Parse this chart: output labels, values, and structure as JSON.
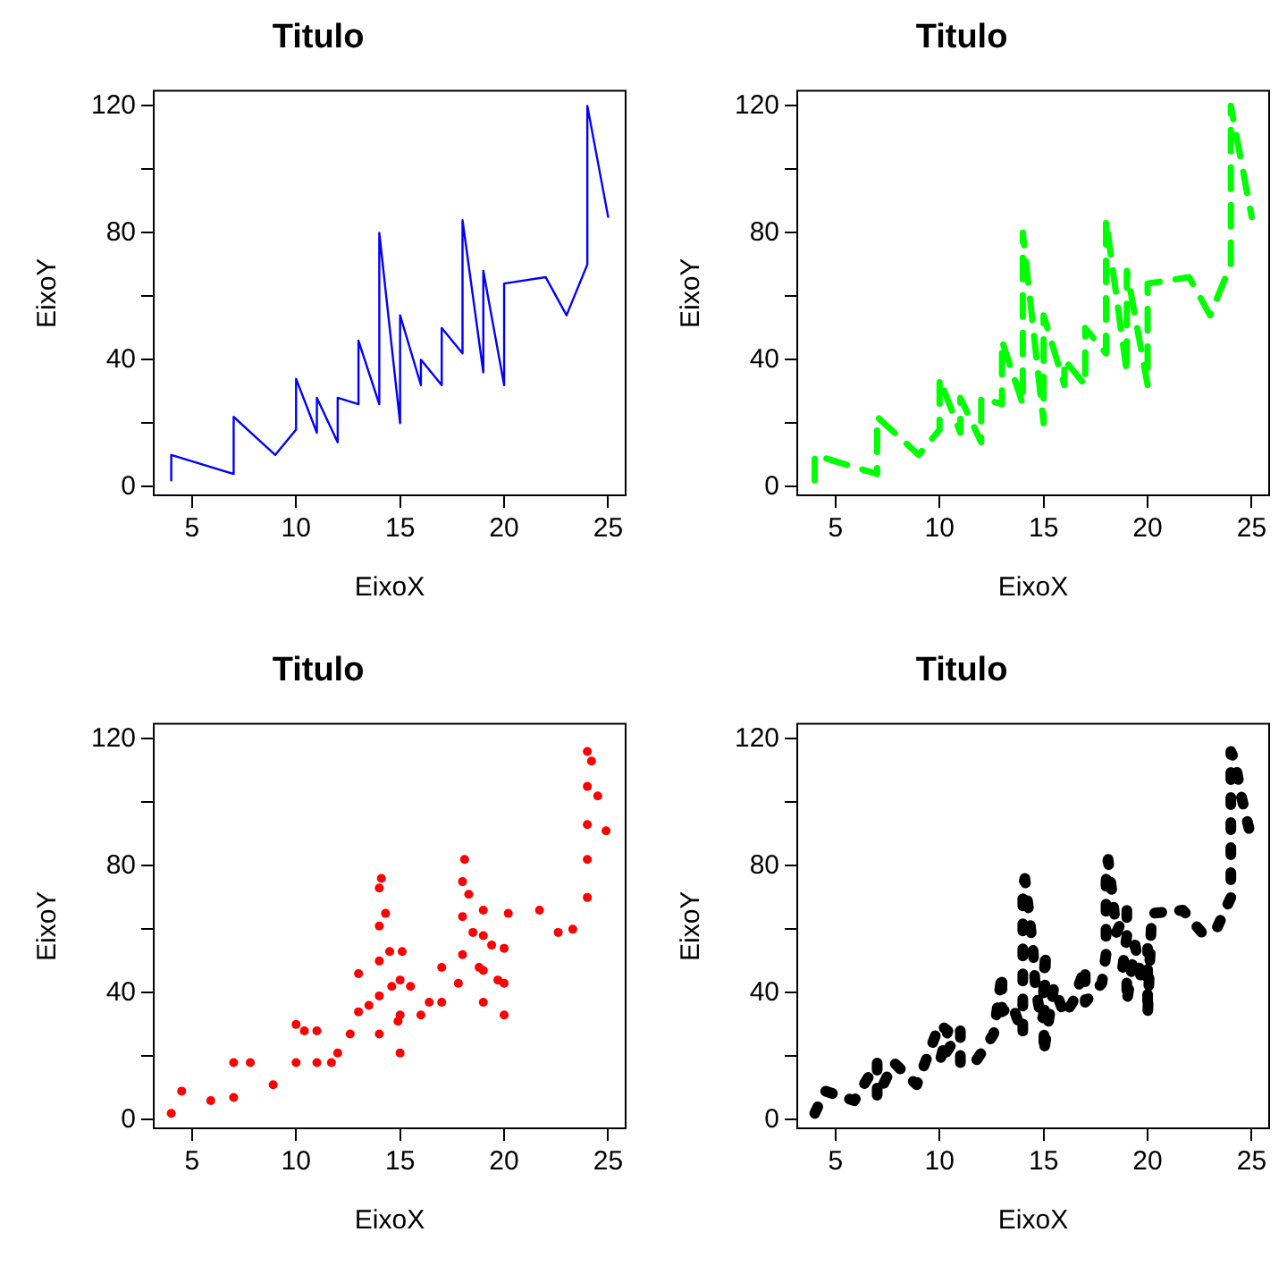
{
  "chart_data": [
    {
      "type": "line",
      "title": "Titulo",
      "xlabel": "EixoX",
      "ylabel": "EixoY",
      "line_style": "solid",
      "marker": "none",
      "xlim": [
        3.16,
        25.84
      ],
      "ylim": [
        -2.72,
        124.72
      ],
      "xticks": [
        5,
        10,
        15,
        20,
        25
      ],
      "yticks": [
        0,
        {
          "value": 20,
          "label": null
        },
        40,
        {
          "value": 60,
          "label": null
        },
        80,
        {
          "value": 100,
          "label": null
        },
        120
      ],
      "x": [
        4,
        4,
        7,
        7,
        8,
        9,
        10,
        10,
        10,
        11,
        11,
        12,
        12,
        12,
        12,
        13,
        13,
        13,
        13,
        14,
        14,
        14,
        14,
        15,
        15,
        15,
        16,
        16,
        17,
        17,
        17,
        18,
        18,
        18,
        18,
        19,
        19,
        19,
        20,
        20,
        20,
        20,
        20,
        22,
        23,
        24,
        24,
        24,
        24,
        25
      ],
      "series": [
        {
          "color": "#0000ff",
          "values": [
            2,
            10,
            4,
            22,
            16,
            10,
            18,
            26,
            34,
            17,
            28,
            14,
            20,
            24,
            28,
            26,
            34,
            34,
            46,
            26,
            36,
            60,
            80,
            20,
            26,
            54,
            32,
            40,
            32,
            40,
            50,
            42,
            56,
            76,
            84,
            36,
            46,
            68,
            32,
            48,
            52,
            56,
            64,
            66,
            54,
            70,
            92,
            93,
            120,
            85
          ]
        }
      ]
    },
    {
      "type": "line",
      "title": "Titulo",
      "xlabel": "EixoX",
      "ylabel": "EixoY",
      "line_style": "dashed",
      "marker": "none",
      "xlim": [
        3.16,
        25.84
      ],
      "ylim": [
        -2.72,
        124.72
      ],
      "xticks": [
        5,
        10,
        15,
        20,
        25
      ],
      "yticks": [
        0,
        {
          "value": 20,
          "label": null
        },
        40,
        {
          "value": 60,
          "label": null
        },
        80,
        {
          "value": 100,
          "label": null
        },
        120
      ],
      "x": [
        4,
        4,
        7,
        7,
        8,
        9,
        10,
        10,
        10,
        11,
        11,
        12,
        12,
        12,
        12,
        13,
        13,
        13,
        13,
        14,
        14,
        14,
        14,
        15,
        15,
        15,
        16,
        16,
        17,
        17,
        17,
        18,
        18,
        18,
        18,
        19,
        19,
        19,
        20,
        20,
        20,
        20,
        20,
        22,
        23,
        24,
        24,
        24,
        24,
        25
      ],
      "series": [
        {
          "color": "#00ff00",
          "values": [
            2,
            10,
            4,
            22,
            16,
            10,
            18,
            26,
            34,
            17,
            28,
            14,
            20,
            24,
            28,
            26,
            34,
            34,
            46,
            26,
            36,
            60,
            80,
            20,
            26,
            54,
            32,
            40,
            32,
            40,
            50,
            42,
            56,
            76,
            84,
            36,
            46,
            68,
            32,
            48,
            52,
            56,
            64,
            66,
            54,
            70,
            92,
            93,
            120,
            85
          ]
        }
      ]
    },
    {
      "type": "scatter",
      "title": "Titulo",
      "xlabel": "EixoX",
      "ylabel": "EixoY",
      "marker": "circle",
      "xlim": [
        3.16,
        25.84
      ],
      "ylim": [
        -2.72,
        124.72
      ],
      "xticks": [
        5,
        10,
        15,
        20,
        25
      ],
      "yticks": [
        0,
        {
          "value": 20,
          "label": null
        },
        40,
        {
          "value": 60,
          "label": null
        },
        80,
        {
          "value": 100,
          "label": null
        },
        120
      ],
      "x": [
        4,
        4.5,
        5.9,
        7,
        7,
        7.8,
        8.9,
        10,
        10.4,
        10,
        11,
        11,
        11.7,
        12,
        12.6,
        13,
        13,
        13.5,
        14,
        14,
        14,
        14,
        14,
        14.1,
        14.3,
        14.5,
        14.6,
        14.9,
        15,
        15,
        15.1,
        15,
        15.5,
        16,
        16.4,
        17,
        17,
        17.8,
        18,
        18,
        18,
        18.1,
        18.3,
        18.5,
        19,
        19,
        18.8,
        19,
        19,
        19.4,
        19.7,
        20,
        20,
        20,
        20.2,
        21.7,
        22.6,
        23.3,
        24,
        24,
        24,
        24,
        24,
        24.2,
        24.5,
        24.9
      ],
      "series": [
        {
          "color": "#ff0000",
          "values": [
            2,
            9,
            6,
            18,
            7,
            18,
            11,
            30,
            28,
            18,
            28,
            18,
            18,
            21,
            27,
            46,
            34,
            36,
            27,
            39,
            50,
            61,
            73,
            76,
            65,
            53,
            42,
            31,
            33,
            44,
            53,
            21,
            42,
            33,
            37,
            48,
            37,
            43,
            52,
            64,
            75,
            82,
            71,
            59,
            66,
            58,
            48,
            47,
            37,
            55,
            44,
            43,
            54,
            33,
            65,
            66,
            59,
            60,
            70,
            82,
            93,
            105,
            116,
            113,
            102,
            91
          ]
        }
      ]
    },
    {
      "type": "line",
      "title": "Titulo",
      "xlabel": "EixoX",
      "ylabel": "EixoY",
      "line_style": "dotted",
      "marker": "none",
      "xlim": [
        3.16,
        25.84
      ],
      "ylim": [
        -2.72,
        124.72
      ],
      "xticks": [
        5,
        10,
        15,
        20,
        25
      ],
      "yticks": [
        0,
        {
          "value": 20,
          "label": null
        },
        40,
        {
          "value": 60,
          "label": null
        },
        80,
        {
          "value": 100,
          "label": null
        },
        120
      ],
      "x": [
        4,
        4.5,
        5.9,
        7,
        7,
        7.8,
        8.9,
        10,
        10.4,
        10,
        11,
        11,
        11.7,
        12,
        12.6,
        13,
        13,
        13.5,
        14,
        14,
        14,
        14,
        14,
        14.1,
        14.3,
        14.5,
        14.6,
        14.9,
        15,
        15,
        15.1,
        15,
        15.5,
        16,
        16.4,
        17,
        17,
        17.8,
        18,
        18,
        18,
        18.1,
        18.3,
        18.5,
        19,
        19,
        18.8,
        19,
        19,
        19.4,
        19.7,
        20,
        20,
        20,
        20.2,
        21.7,
        22.6,
        23.3,
        24,
        24,
        24,
        24,
        24,
        24.2,
        24.5,
        24.9
      ],
      "series": [
        {
          "color": "#000000",
          "values": [
            2,
            9,
            6,
            18,
            7,
            18,
            11,
            30,
            28,
            18,
            28,
            18,
            18,
            21,
            27,
            46,
            34,
            36,
            27,
            39,
            50,
            61,
            73,
            76,
            65,
            53,
            42,
            31,
            33,
            44,
            53,
            21,
            42,
            33,
            37,
            48,
            37,
            43,
            52,
            64,
            75,
            82,
            71,
            59,
            66,
            58,
            48,
            47,
            37,
            55,
            44,
            43,
            54,
            33,
            65,
            66,
            59,
            60,
            70,
            82,
            93,
            105,
            116,
            113,
            102,
            91
          ]
        }
      ]
    }
  ]
}
